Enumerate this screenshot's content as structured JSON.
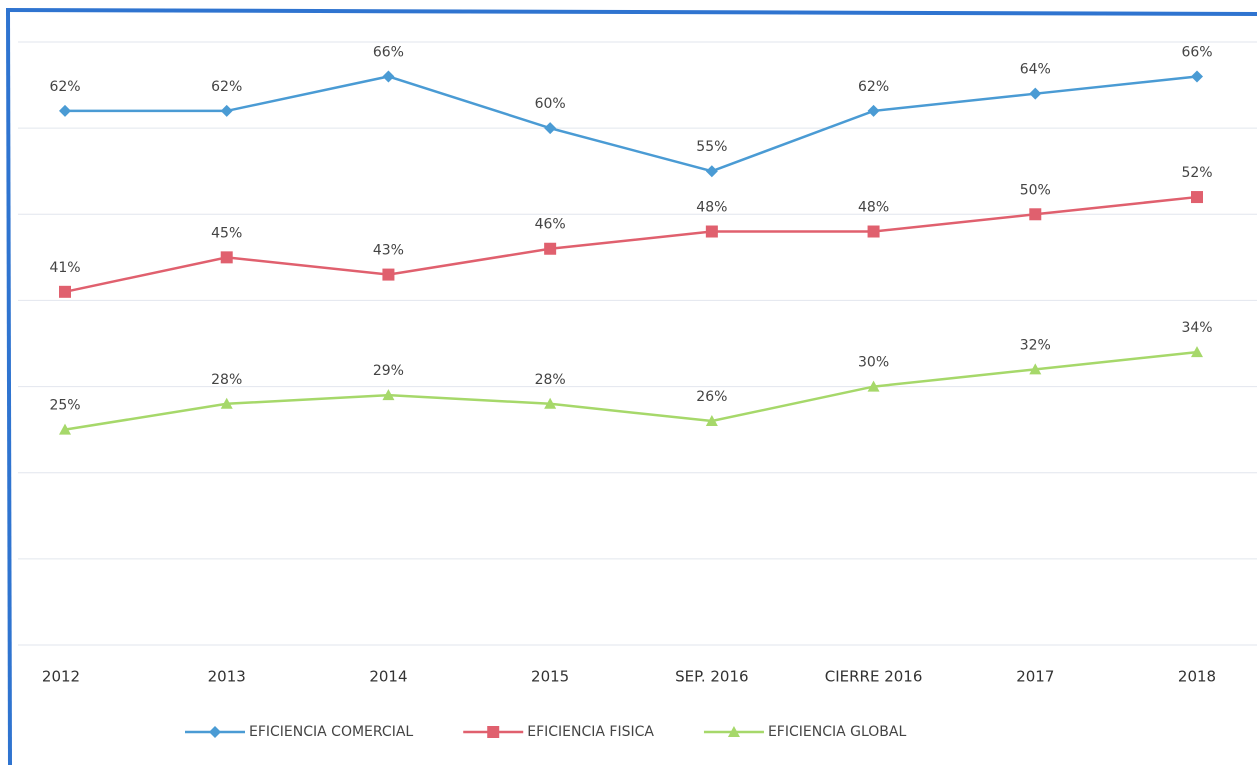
{
  "chart_data": {
    "type": "line",
    "categories": [
      "2012",
      "2013",
      "2014",
      "2015",
      "SEP. 2016",
      "CIERRE 2016",
      "2017",
      "2018"
    ],
    "series": [
      {
        "name": "EFICIENCIA COMERCIAL",
        "color": "#4a9bd4",
        "marker": "diamond",
        "values": [
          62,
          62,
          66,
          60,
          55,
          62,
          64,
          66
        ],
        "value_labels": [
          "62%",
          "62%",
          "66%",
          "60%",
          "55%",
          "62%",
          "64%",
          "66%"
        ]
      },
      {
        "name": "EFICIENCIA FISICA",
        "color": "#e0606e",
        "marker": "square",
        "values": [
          41,
          45,
          43,
          46,
          48,
          48,
          50,
          52
        ],
        "value_labels": [
          "41%",
          "45%",
          "43%",
          "46%",
          "48%",
          "48%",
          "50%",
          "52%"
        ]
      },
      {
        "name": "EFICIENCIA GLOBAL",
        "color": "#a6d86a",
        "marker": "triangle",
        "values": [
          25,
          28,
          29,
          28,
          26,
          30,
          32,
          34
        ],
        "value_labels": [
          "25%",
          "28%",
          "29%",
          "28%",
          "26%",
          "30%",
          "32%",
          "34%"
        ]
      }
    ],
    "ylim": [
      0,
      70
    ],
    "yticks": [
      0,
      10,
      20,
      30,
      40,
      50,
      60,
      70
    ],
    "grid": true,
    "legend": "bottom"
  }
}
